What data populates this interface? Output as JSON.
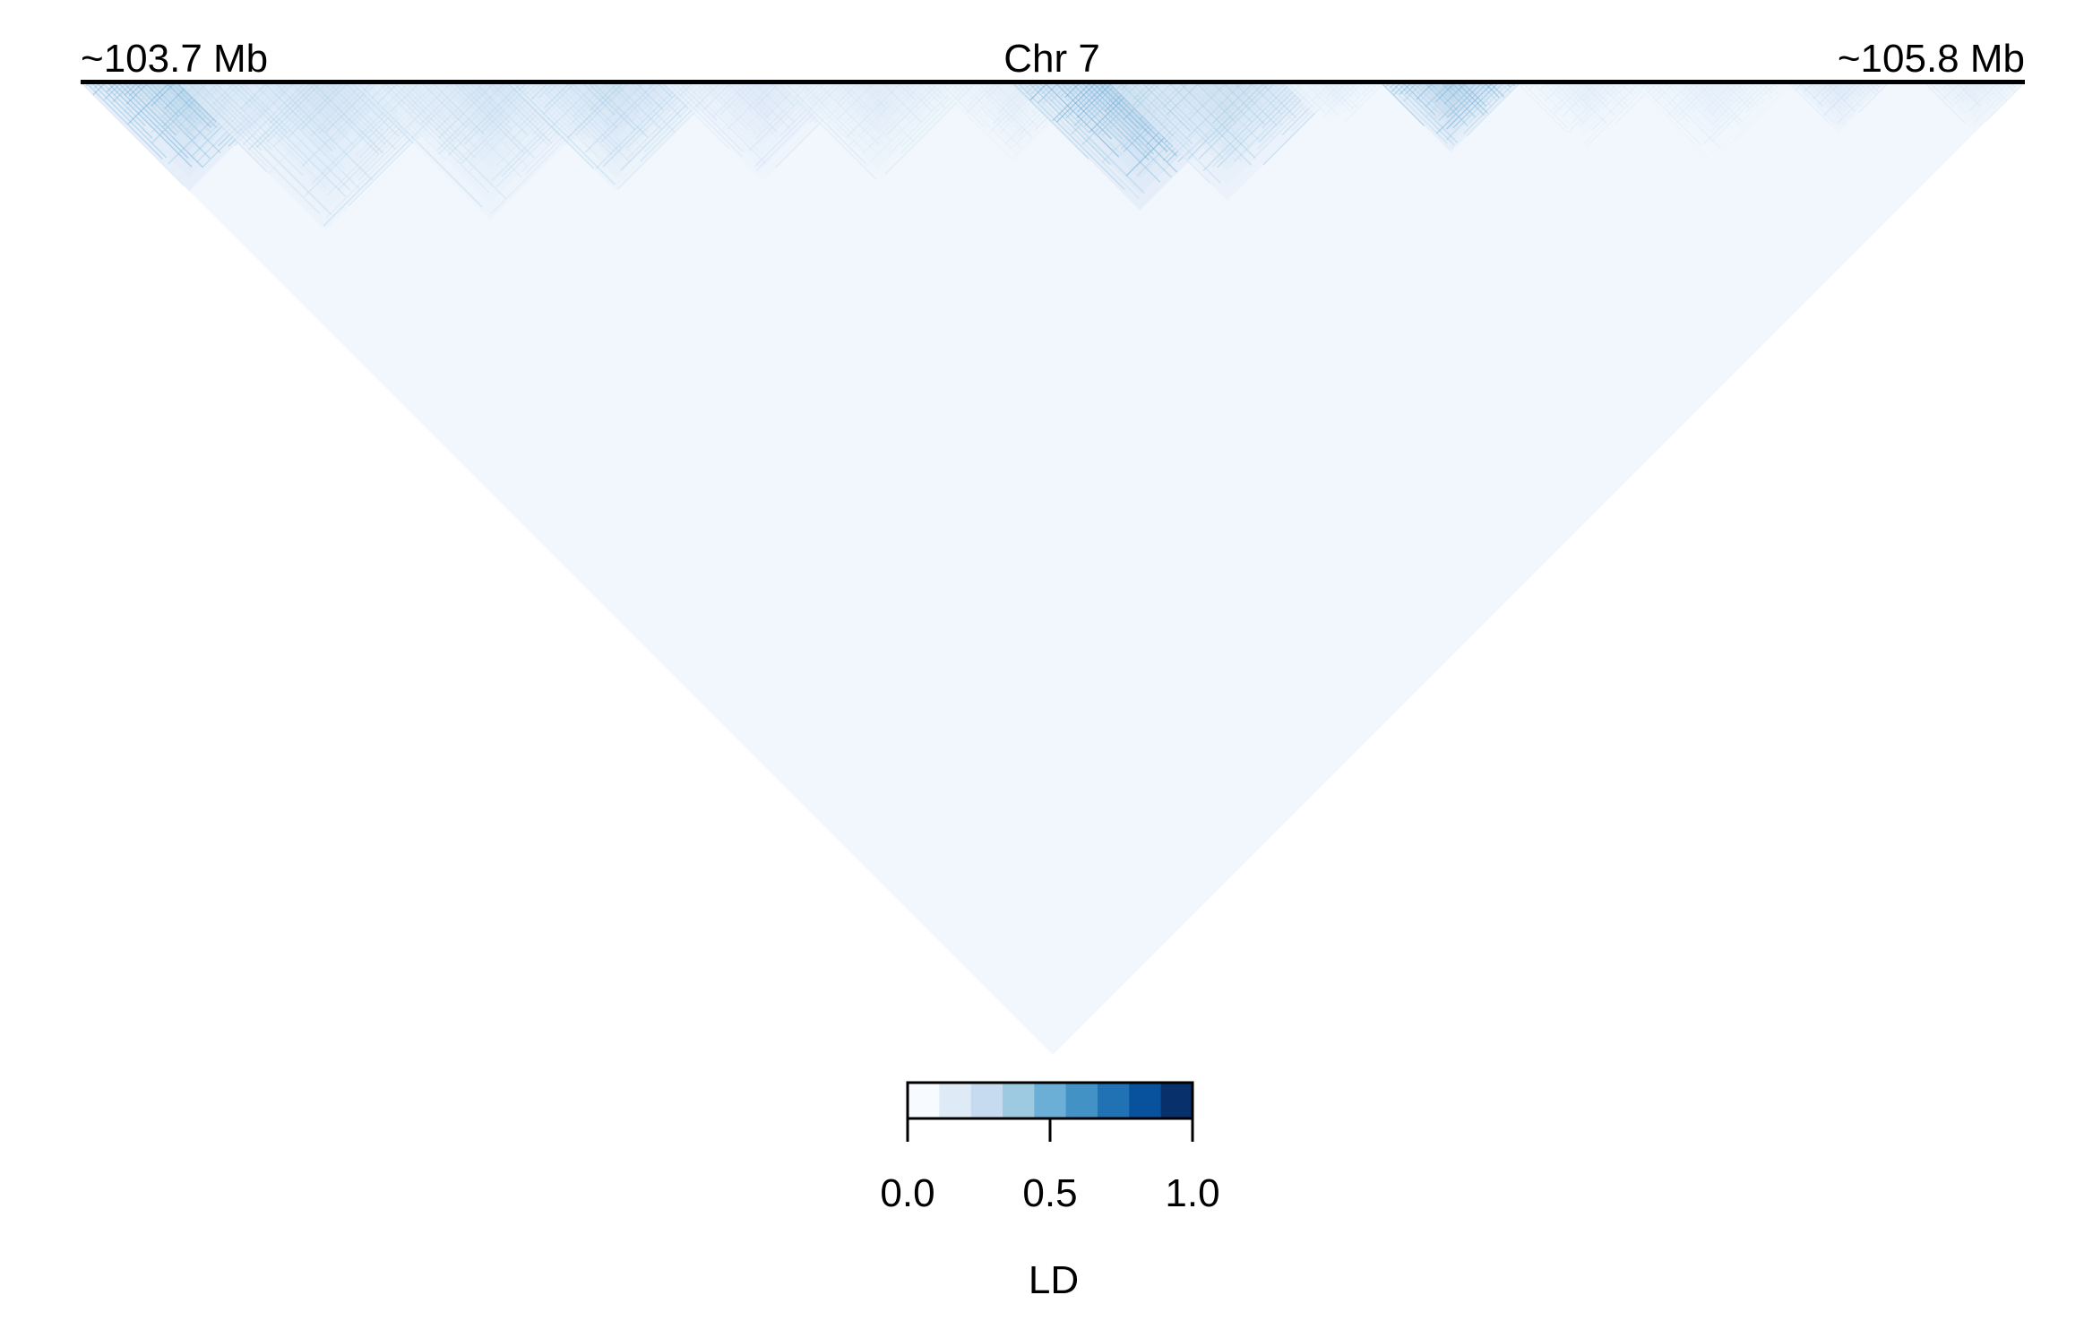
{
  "chart_data": {
    "type": "heatmap",
    "title": "Chr 7",
    "region_start_label": "~103.7 Mb",
    "region_end_label": "~105.8 Mb",
    "legend": {
      "title": "LD",
      "min": 0.0,
      "max": 1.0,
      "ticks": [
        "0.0",
        "0.5",
        "1.0"
      ],
      "tick_values": [
        0.0,
        0.5,
        1.0
      ],
      "colors": [
        "#f7fbff",
        "#deebf7",
        "#c6dbef",
        "#9ecae1",
        "#6baed6",
        "#4292c6",
        "#2171b5",
        "#08519c",
        "#08306b"
      ]
    },
    "ld_blocks": [
      {
        "start": 0.0,
        "end": 0.11,
        "mean_ld": 0.35
      },
      {
        "start": 0.05,
        "end": 0.2,
        "mean_ld": 0.22
      },
      {
        "start": 0.14,
        "end": 0.28,
        "mean_ld": 0.2
      },
      {
        "start": 0.22,
        "end": 0.33,
        "mean_ld": 0.24
      },
      {
        "start": 0.3,
        "end": 0.4,
        "mean_ld": 0.16
      },
      {
        "start": 0.36,
        "end": 0.46,
        "mean_ld": 0.14
      },
      {
        "start": 0.44,
        "end": 0.52,
        "mean_ld": 0.12
      },
      {
        "start": 0.48,
        "end": 0.61,
        "mean_ld": 0.38
      },
      {
        "start": 0.53,
        "end": 0.65,
        "mean_ld": 0.26
      },
      {
        "start": 0.62,
        "end": 0.67,
        "mean_ld": 0.1
      },
      {
        "start": 0.67,
        "end": 0.74,
        "mean_ld": 0.36
      },
      {
        "start": 0.74,
        "end": 0.81,
        "mean_ld": 0.1
      },
      {
        "start": 0.8,
        "end": 0.88,
        "mean_ld": 0.1
      },
      {
        "start": 0.88,
        "end": 0.93,
        "mean_ld": 0.16
      },
      {
        "start": 0.95,
        "end": 1.0,
        "mean_ld": 0.12
      }
    ],
    "background_ld": 0.03
  }
}
